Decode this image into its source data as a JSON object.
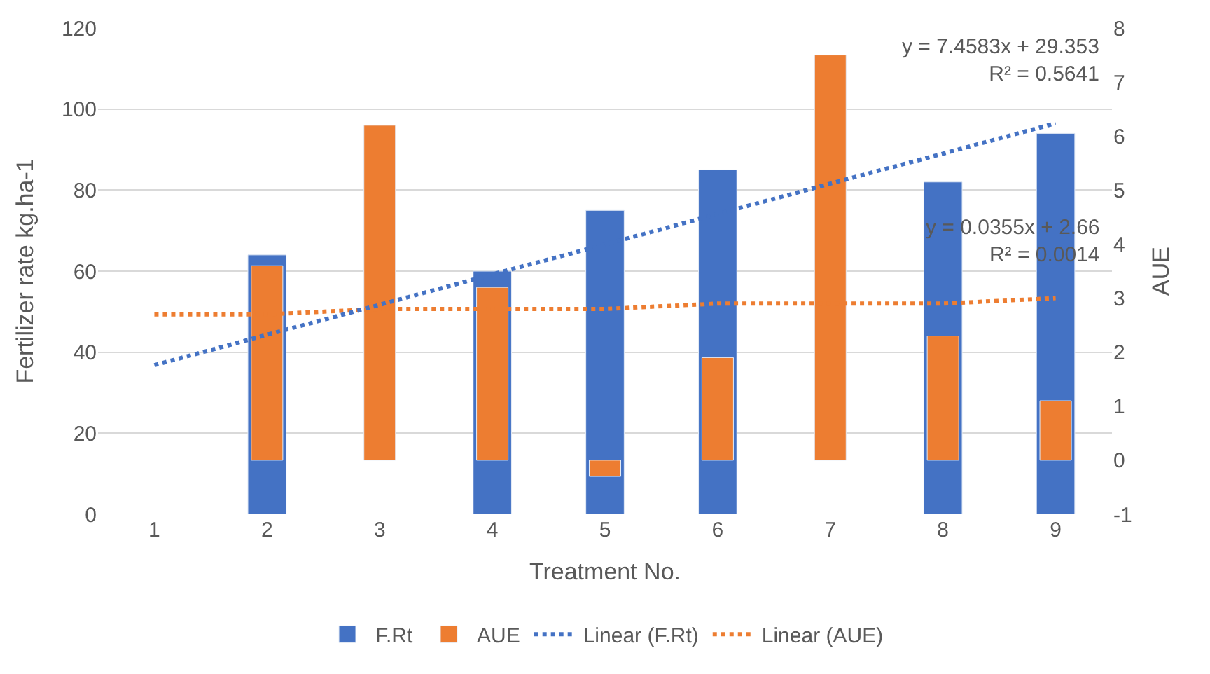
{
  "chart_data": {
    "type": "bar",
    "xlabel": "Treatment No.",
    "ylabel": "Fertilizer rate kg.ha-1",
    "y2label": "AUE",
    "x": [
      1,
      2,
      3,
      4,
      5,
      6,
      7,
      8,
      9
    ],
    "series": [
      {
        "name": "F.Rt",
        "color": "#4472c4",
        "values": [
          null,
          64,
          null,
          60,
          75,
          85,
          null,
          82,
          94
        ]
      },
      {
        "name": "AUE",
        "color": "#ed7d31",
        "axis": "y2",
        "values": [
          null,
          3.6,
          6.2,
          3.2,
          -0.3,
          1.9,
          7.5,
          2.3,
          1.1
        ]
      },
      {
        "name": "Linear (F.Rt)",
        "type": "line",
        "color": "#4472c4",
        "line_style": "dotted",
        "marker": "none",
        "values": [
          36.8,
          44.3,
          51.7,
          59.2,
          66.6,
          74.1,
          81.6,
          89.0,
          96.5
        ]
      },
      {
        "name": "Linear (AUE)",
        "type": "line",
        "color": "#ed7d31",
        "line_style": "dotted",
        "marker": "none",
        "axis": "y2",
        "values": [
          2.7,
          2.7,
          2.8,
          2.8,
          2.8,
          2.9,
          2.9,
          2.9,
          3.0
        ]
      }
    ],
    "xlim": [
      0.5,
      9.5
    ],
    "xticks": [
      1,
      2,
      3,
      4,
      5,
      6,
      7,
      8,
      9
    ],
    "ylim": [
      0,
      120
    ],
    "yticks": [
      0,
      20,
      40,
      60,
      80,
      100,
      120
    ],
    "y2lim": [
      -1,
      8
    ],
    "y2ticks": [
      -1,
      0,
      1,
      2,
      3,
      4,
      5,
      6,
      7,
      8
    ],
    "annotations": [
      "y = 7.4583x + 29.353\nR² = 0.5641",
      "y = 0.0355x + 2.66\nR² = 0.0014"
    ],
    "grid": "y",
    "legend": "bottom"
  }
}
